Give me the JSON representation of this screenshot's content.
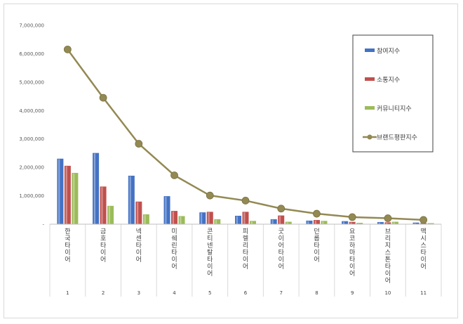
{
  "chart_data": {
    "type": "bar",
    "categories": [
      "한국타이어",
      "금호타이어",
      "넥센타이어",
      "미쉐린타이어",
      "콘티넨탈타이어",
      "피렐리타이어",
      "굿이어타이어",
      "던롭타이어",
      "요코하마타이어",
      "브리지스톤타이어",
      "맥시스타이어"
    ],
    "indices": [
      "1",
      "2",
      "3",
      "4",
      "5",
      "6",
      "7",
      "8",
      "9",
      "10",
      "11"
    ],
    "series": [
      {
        "name": "참여지수",
        "type": "bar",
        "color": "#4472c4",
        "values": [
          2300000,
          2500000,
          1700000,
          980000,
          410000,
          290000,
          170000,
          120000,
          100000,
          70000,
          50000
        ]
      },
      {
        "name": "소통지수",
        "type": "bar",
        "color": "#c0504d",
        "values": [
          2050000,
          1320000,
          790000,
          460000,
          430000,
          430000,
          300000,
          140000,
          75000,
          60000,
          30000
        ]
      },
      {
        "name": "커뮤니티지수",
        "type": "bar",
        "color": "#9bbb59",
        "values": [
          1800000,
          640000,
          340000,
          280000,
          170000,
          110000,
          80000,
          110000,
          40000,
          80000,
          30000
        ]
      },
      {
        "name": "브랜드평판지수",
        "type": "line",
        "color": "#938953",
        "values": [
          6150000,
          4450000,
          2830000,
          1720000,
          1010000,
          830000,
          550000,
          370000,
          250000,
          210000,
          150000
        ]
      }
    ],
    "ylim": [
      0,
      7000000
    ],
    "yticks": [
      0,
      1000000,
      2000000,
      3000000,
      4000000,
      5000000,
      6000000,
      7000000
    ],
    "ytick_labels": [
      "-",
      "1,000,000",
      "2,000,000",
      "3,000,000",
      "4,000,000",
      "5,000,000",
      "6,000,000",
      "7,000,000"
    ],
    "legend_position": "top-right",
    "grid": false
  }
}
